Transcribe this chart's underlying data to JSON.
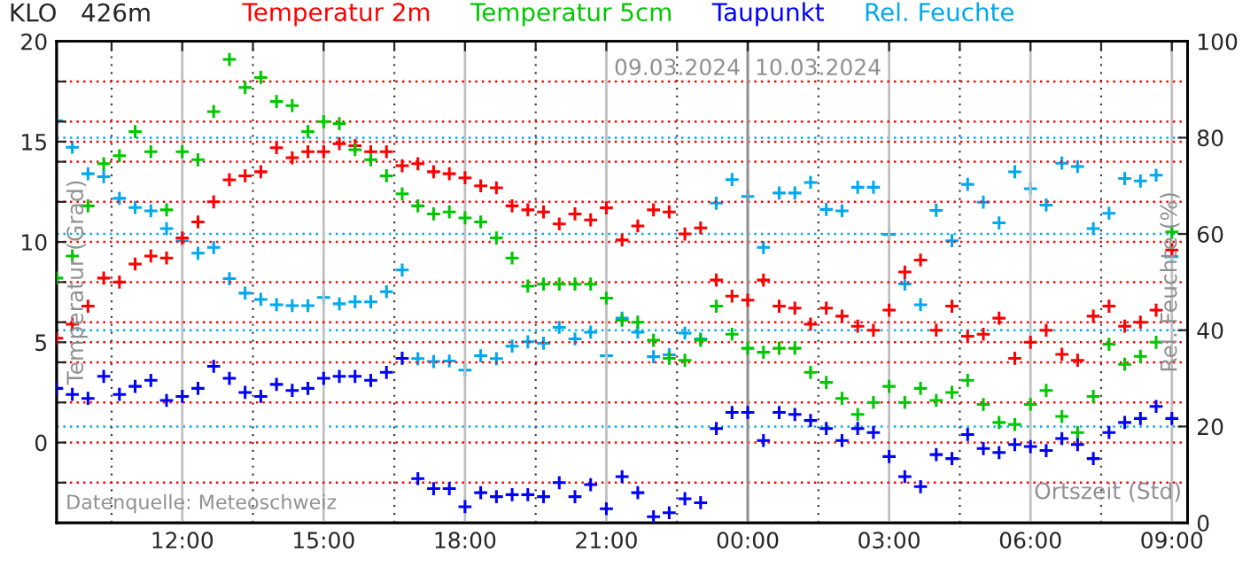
{
  "chart_data": {
    "type": "scatter",
    "title": "KLO   426m",
    "xlabel": "Ortszeit (Std)",
    "ylabel": "Temperatur (Grad)",
    "y2label": "Rel. Feuchte (%)",
    "annotations": [
      "Datenquelle: Meteoschweiz"
    ],
    "x": [
      "2024-03-09T09:20",
      "2024-03-09T09:40",
      "2024-03-09T10:00",
      "2024-03-09T10:20",
      "2024-03-09T10:40",
      "2024-03-09T11:00",
      "2024-03-09T11:20",
      "2024-03-09T11:40",
      "2024-03-09T12:00",
      "2024-03-09T12:20",
      "2024-03-09T12:40",
      "2024-03-09T13:00",
      "2024-03-09T13:20",
      "2024-03-09T13:40",
      "2024-03-09T14:00",
      "2024-03-09T14:20",
      "2024-03-09T14:40",
      "2024-03-09T15:00",
      "2024-03-09T15:20",
      "2024-03-09T15:40",
      "2024-03-09T16:00",
      "2024-03-09T16:20",
      "2024-03-09T16:40",
      "2024-03-09T17:00",
      "2024-03-09T17:20",
      "2024-03-09T17:40",
      "2024-03-09T18:00",
      "2024-03-09T18:20",
      "2024-03-09T18:40",
      "2024-03-09T19:00",
      "2024-03-09T19:20",
      "2024-03-09T19:40",
      "2024-03-09T20:00",
      "2024-03-09T20:20",
      "2024-03-09T20:40",
      "2024-03-09T21:00",
      "2024-03-09T21:20",
      "2024-03-09T21:40",
      "2024-03-09T22:00",
      "2024-03-09T22:20",
      "2024-03-09T22:40",
      "2024-03-09T23:00",
      "2024-03-09T23:20",
      "2024-03-09T23:40",
      "2024-03-10T00:00",
      "2024-03-10T00:20",
      "2024-03-10T00:40",
      "2024-03-10T01:00",
      "2024-03-10T01:20",
      "2024-03-10T01:40",
      "2024-03-10T02:00",
      "2024-03-10T02:20",
      "2024-03-10T02:40",
      "2024-03-10T03:00",
      "2024-03-10T03:20",
      "2024-03-10T03:40",
      "2024-03-10T04:00",
      "2024-03-10T04:20",
      "2024-03-10T04:40",
      "2024-03-10T05:00",
      "2024-03-10T05:20",
      "2024-03-10T05:40",
      "2024-03-10T06:00",
      "2024-03-10T06:20",
      "2024-03-10T06:40",
      "2024-03-10T07:00",
      "2024-03-10T07:20",
      "2024-03-10T07:40",
      "2024-03-10T08:00",
      "2024-03-10T08:20",
      "2024-03-10T08:40",
      "2024-03-10T09:00"
    ],
    "series": [
      {
        "name": "Temperatur 2m",
        "color": "#ff0000",
        "values": [
          5.2,
          5.9,
          6.8,
          8.2,
          8.0,
          8.9,
          9.3,
          9.2,
          10.2,
          11.0,
          12.0,
          13.1,
          13.3,
          13.5,
          14.7,
          14.2,
          14.5,
          14.5,
          14.9,
          14.8,
          14.5,
          14.5,
          13.8,
          13.9,
          13.5,
          13.4,
          13.2,
          12.8,
          12.7,
          11.8,
          11.6,
          11.5,
          10.9,
          11.4,
          11.1,
          11.7,
          10.1,
          10.8,
          11.6,
          11.5,
          10.4,
          10.7,
          8.1,
          7.3,
          7.1,
          8.1,
          6.8,
          6.7,
          5.9,
          6.7,
          6.3,
          5.8,
          5.6,
          6.6,
          8.5,
          9.1,
          5.6,
          6.8,
          5.3,
          5.4,
          6.2,
          4.2,
          5.0,
          5.6,
          4.4,
          4.1,
          6.3,
          6.8,
          5.8,
          6.0,
          6.6,
          9.6
        ]
      },
      {
        "name": "Temperatur 5cm",
        "color": "#00c800",
        "values": [
          8.2,
          9.3,
          11.8,
          13.9,
          14.3,
          15.5,
          14.5,
          11.6,
          14.5,
          14.1,
          16.5,
          19.1,
          17.7,
          18.2,
          17.0,
          16.8,
          15.5,
          16.0,
          15.9,
          14.6,
          14.1,
          13.3,
          12.4,
          11.8,
          11.4,
          11.5,
          11.2,
          11.0,
          10.2,
          9.2,
          7.8,
          7.9,
          7.9,
          7.9,
          7.9,
          7.2,
          6.1,
          6.0,
          5.1,
          4.2,
          4.1,
          5.1,
          6.8,
          5.4,
          4.7,
          4.5,
          4.7,
          4.7,
          3.5,
          3.0,
          2.2,
          1.4,
          2.0,
          2.8,
          2.0,
          2.7,
          2.1,
          2.5,
          3.1,
          1.9,
          1.0,
          0.9,
          1.9,
          2.6,
          1.3,
          0.5,
          2.3,
          4.9,
          3.9,
          4.3,
          5.0,
          10.5
        ]
      },
      {
        "name": "Taupunkt",
        "color": "#0000ff",
        "values": [
          2.7,
          2.4,
          2.2,
          3.3,
          2.4,
          2.8,
          3.1,
          2.1,
          2.3,
          2.7,
          3.8,
          3.2,
          2.5,
          2.3,
          2.9,
          2.6,
          2.7,
          3.2,
          3.3,
          3.3,
          3.1,
          3.5,
          4.2,
          -1.8,
          -2.3,
          -2.3,
          -3.2,
          -2.5,
          -2.7,
          -2.6,
          -2.6,
          -2.7,
          -2.0,
          -2.7,
          -2.1,
          -3.3,
          -1.7,
          -2.5,
          -3.7,
          -3.5,
          -2.8,
          -3.0,
          0.7,
          1.5,
          1.5,
          0.1,
          1.5,
          1.4,
          1.1,
          0.7,
          0.1,
          0.7,
          0.5,
          -0.7,
          -1.7,
          -2.2,
          -0.6,
          -0.8,
          0.4,
          -0.3,
          -0.5,
          -0.1,
          -0.2,
          -0.4,
          0.2,
          -0.1,
          -0.8,
          0.5,
          1.0,
          1.2,
          1.8,
          1.2
        ]
      },
      {
        "name": "Rel. Feuchte",
        "color": "#00a8f0",
        "axis": "y2",
        "values": [
          83.5,
          78.0,
          72.5,
          71.9,
          67.4,
          65.5,
          64.8,
          61.1,
          58.6,
          56.0,
          57.2,
          50.7,
          47.7,
          46.4,
          45.3,
          45.1,
          45.1,
          46.8,
          45.5,
          45.9,
          45.9,
          48.0,
          52.5,
          34.1,
          33.5,
          33.6,
          31.7,
          34.7,
          34.1,
          36.7,
          37.6,
          37.3,
          40.6,
          38.2,
          39.6,
          34.7,
          42.5,
          39.6,
          34.5,
          34.9,
          39.4,
          38.2,
          66.4,
          71.3,
          67.8,
          57.2,
          68.5,
          68.5,
          70.7,
          65.1,
          64.8,
          69.7,
          69.7,
          59.9,
          49.6,
          45.3,
          64.9,
          58.6,
          70.3,
          66.6,
          62.3,
          72.9,
          69.4,
          66.0,
          74.7,
          74.0,
          61.1,
          64.3,
          71.5,
          71.0,
          72.2,
          55.3
        ]
      }
    ],
    "xlim": [
      "2024-03-09T09:20",
      "2024-03-10T09:20"
    ],
    "xticks": [
      {
        "value": "2024-03-09T10:30",
        "label": null
      },
      {
        "value": "2024-03-09T12:00",
        "label": "12:00"
      },
      {
        "value": "2024-03-09T13:30",
        "label": null
      },
      {
        "value": "2024-03-09T15:00",
        "label": "15:00"
      },
      {
        "value": "2024-03-09T16:30",
        "label": null
      },
      {
        "value": "2024-03-09T18:00",
        "label": "18:00"
      },
      {
        "value": "2024-03-09T19:30",
        "label": null
      },
      {
        "value": "2024-03-09T21:00",
        "label": "21:00"
      },
      {
        "value": "2024-03-09T22:30",
        "label": null
      },
      {
        "value": "2024-03-10T00:00",
        "label": "00:00"
      },
      {
        "value": "2024-03-10T01:30",
        "label": null
      },
      {
        "value": "2024-03-10T03:00",
        "label": "03:00"
      },
      {
        "value": "2024-03-10T04:30",
        "label": null
      },
      {
        "value": "2024-03-10T06:00",
        "label": "06:00"
      },
      {
        "value": "2024-03-10T07:30",
        "label": null
      },
      {
        "value": "2024-03-10T09:00",
        "label": "09:00"
      }
    ],
    "ylim": [
      -4,
      20
    ],
    "yticks": [
      {
        "value": -2,
        "label": null
      },
      0,
      {
        "value": 2,
        "label": null
      },
      {
        "value": 4,
        "label": null
      },
      5,
      {
        "value": 6,
        "label": null
      },
      {
        "value": 8,
        "label": null
      },
      10,
      {
        "value": 12,
        "label": null
      },
      {
        "value": 14,
        "label": null
      },
      15,
      {
        "value": 16,
        "label": null
      },
      {
        "value": 18,
        "label": null
      },
      20
    ],
    "y2lim": [
      0,
      100
    ],
    "y2ticks": [
      0,
      20,
      40,
      60,
      80,
      100
    ],
    "ref_lines": [
      {
        "axis": "x",
        "value": "2024-03-10T00:00",
        "label": "09.03.2024  10.03.2024",
        "color": "#909090"
      }
    ],
    "grid": true,
    "legend": "top",
    "marker": "cross"
  }
}
